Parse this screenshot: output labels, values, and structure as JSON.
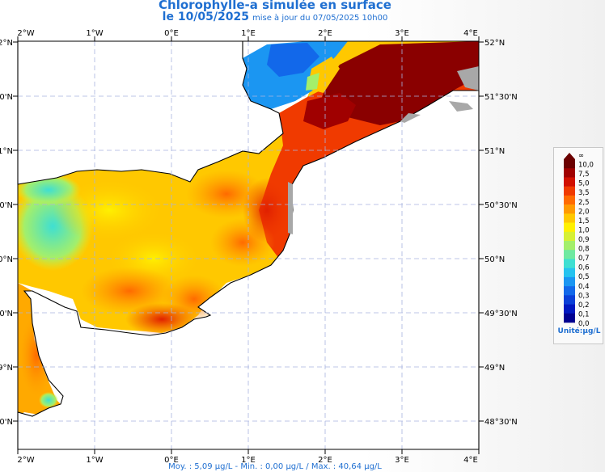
{
  "header": {
    "title": "Chlorophylle-a simulée en surface",
    "date": "le 10/05/2025",
    "update": "mise à jour du 07/05/2025 10h00"
  },
  "axes": {
    "lon_labels": [
      "2°W",
      "1°W",
      "0°E",
      "1°E",
      "2°E",
      "3°E",
      "4°E"
    ],
    "lat_labels_left": [
      "2°N",
      "0'N",
      "1°N",
      "0'N",
      "0°N",
      "0'N",
      "9°N",
      "0'N"
    ],
    "lat_labels_right": [
      "52°N",
      "51°30'N",
      "51°N",
      "50°30'N",
      "50°N",
      "49°30'N",
      "49°N",
      "48°30'N"
    ]
  },
  "legend": {
    "ticks": [
      "∞",
      "10,0",
      "7,5",
      "5,0",
      "3,5",
      "2,5",
      "2,0",
      "1,5",
      "1,0",
      "0,9",
      "0,8",
      "0,7",
      "0,6",
      "0,5",
      "0,4",
      "0,3",
      "0,2",
      "0,1",
      "0,0"
    ],
    "colors": [
      "#6b0000",
      "#a00000",
      "#d11000",
      "#f03a00",
      "#ff6a00",
      "#ff9a00",
      "#ffc800",
      "#fff000",
      "#d6f035",
      "#a3ef6b",
      "#6fe9a1",
      "#3fdfd2",
      "#26c3ef",
      "#1b96f2",
      "#1268ea",
      "#0a3fd8",
      "#0018c0",
      "#000090"
    ],
    "unit": "Unité:µg/L"
  },
  "footer": "Moy. : 5,09 µg/L   -   Min. : 0,00 µg/L / Max. : 40,64 µg/L",
  "chart_data": {
    "type": "heatmap",
    "variable": "surface chlorophyll-a (simulated)",
    "lon_range": [
      -2,
      4
    ],
    "lat_range": [
      48.5,
      52
    ],
    "mean": "5,09 µg/L",
    "min": "0,00 µg/L",
    "max": "40,64 µg/L"
  }
}
